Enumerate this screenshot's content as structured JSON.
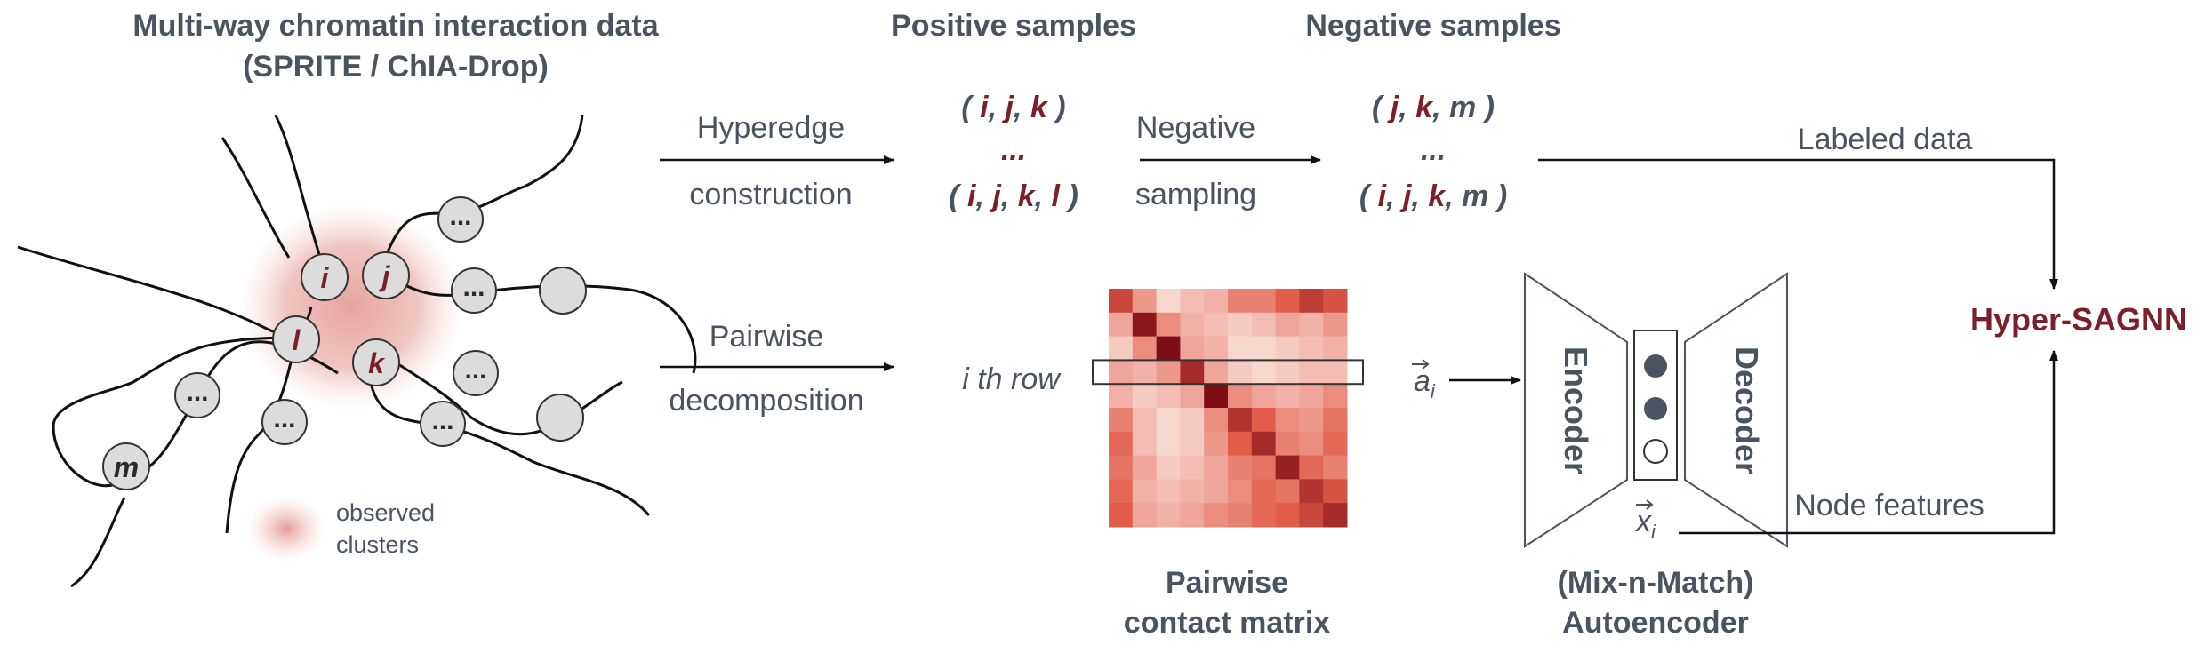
{
  "input": {
    "title_line1": "Multi-way chromatin interaction data",
    "title_line2": "(SPRITE / ChIA-Drop)",
    "legend_text_line1": "observed",
    "legend_text_line2": "clusters",
    "node_labels": {
      "i": "i",
      "j": "j",
      "k": "k",
      "l": "l",
      "m": "m",
      "ellipsis": "..."
    }
  },
  "positive": {
    "header": "Positive samples",
    "tuple1": [
      "i",
      "j",
      "k"
    ],
    "ellipsis": "...",
    "tuple2": [
      "i",
      "j",
      "k",
      "l"
    ]
  },
  "negative": {
    "header": "Negative samples",
    "tuple1": [
      "j",
      "k",
      "m"
    ],
    "ellipsis": "...",
    "tuple2": [
      "i",
      "j",
      "k",
      "m"
    ]
  },
  "arrows": {
    "hyperedge_line1": "Hyperedge",
    "hyperedge_line2": "construction",
    "negative_line1": "Negative",
    "negative_line2": "sampling",
    "pairwise_line1": "Pairwise",
    "pairwise_line2": "decomposition",
    "labeled_data": "Labeled data",
    "node_features": "Node features"
  },
  "matrix": {
    "row_label": "i th row",
    "vector_a": "a",
    "vector_a_sub": "i",
    "caption_line1": "Pairwise",
    "caption_line2": "contact matrix",
    "cells": [
      [
        0.7,
        0.35,
        0.1,
        0.2,
        0.25,
        0.45,
        0.45,
        0.6,
        0.75,
        0.65
      ],
      [
        0.3,
        0.95,
        0.4,
        0.25,
        0.2,
        0.15,
        0.2,
        0.3,
        0.25,
        0.35
      ],
      [
        0.15,
        0.4,
        1.0,
        0.3,
        0.25,
        0.1,
        0.1,
        0.15,
        0.2,
        0.25
      ],
      [
        0.3,
        0.25,
        0.35,
        0.85,
        0.3,
        0.15,
        0.1,
        0.15,
        0.2,
        0.2
      ],
      [
        0.25,
        0.15,
        0.2,
        0.3,
        1.0,
        0.4,
        0.3,
        0.25,
        0.3,
        0.4
      ],
      [
        0.45,
        0.2,
        0.1,
        0.15,
        0.4,
        0.8,
        0.6,
        0.4,
        0.35,
        0.5
      ],
      [
        0.55,
        0.2,
        0.1,
        0.15,
        0.35,
        0.6,
        0.85,
        0.45,
        0.4,
        0.55
      ],
      [
        0.5,
        0.3,
        0.15,
        0.2,
        0.3,
        0.45,
        0.5,
        0.9,
        0.55,
        0.45
      ],
      [
        0.55,
        0.25,
        0.2,
        0.25,
        0.3,
        0.4,
        0.55,
        0.5,
        0.8,
        0.65
      ],
      [
        0.6,
        0.3,
        0.25,
        0.3,
        0.4,
        0.45,
        0.55,
        0.6,
        0.7,
        0.85
      ]
    ],
    "highlight_row": 3,
    "color_low": "#fbeee8",
    "color_high": "#7f0d16"
  },
  "autoencoder": {
    "encoder": "Encoder",
    "decoder": "Decoder",
    "vector_x": "x",
    "vector_x_sub": "i",
    "caption_line1": "(Mix-n-Match)",
    "caption_line2": "Autoencoder"
  },
  "output": {
    "label": "Hyper-SAGNN"
  },
  "colors": {
    "text": "#4a5461",
    "accent": "#7b1f2a",
    "node_fill": "#dcdcdc",
    "cluster": "#e8a6a0"
  }
}
